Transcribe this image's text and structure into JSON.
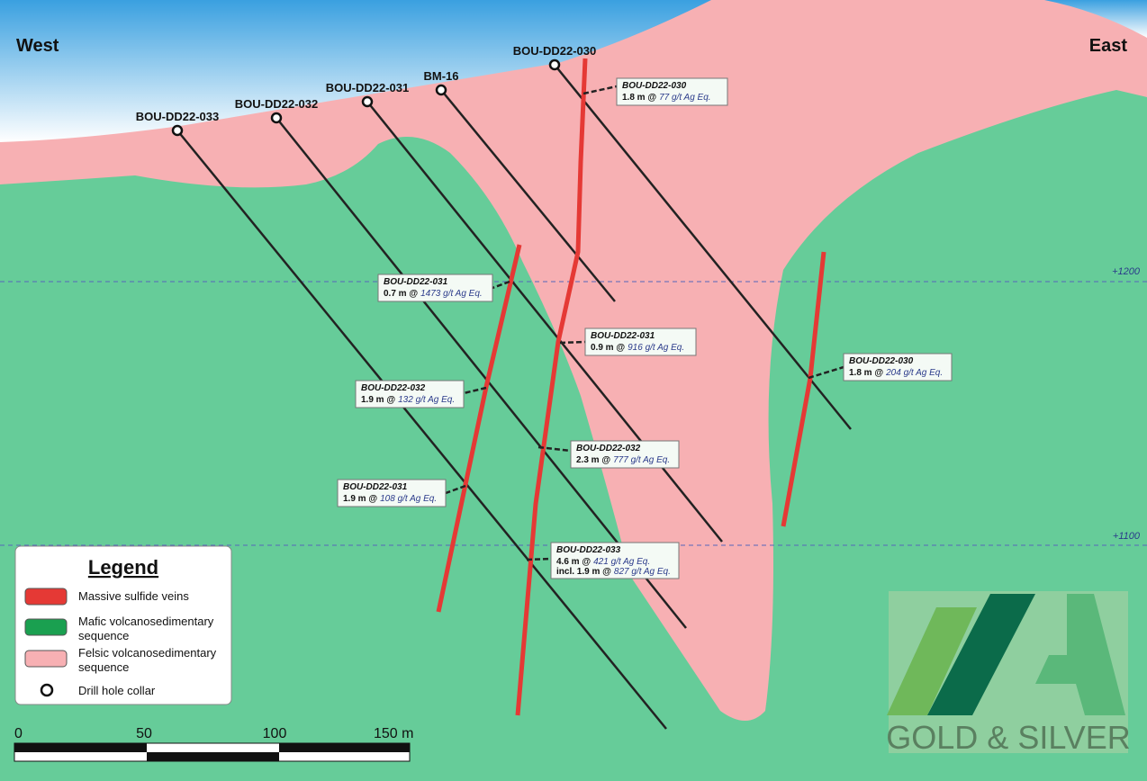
{
  "header": {
    "west": "West",
    "east": "East"
  },
  "holes": [
    {
      "label": "BOU-DD22-033"
    },
    {
      "label": "BOU-DD22-032"
    },
    {
      "label": "BOU-DD22-031"
    },
    {
      "label": "BM-16"
    },
    {
      "label": "BOU-DD22-030"
    }
  ],
  "elevations": [
    "+1200",
    "+1100"
  ],
  "intercepts": [
    {
      "hole": "BOU-DD22-030",
      "interval": "1.8 m @",
      "grade": "77 g/t Ag Eq."
    },
    {
      "hole": "BOU-DD22-031",
      "interval": "0.7 m @",
      "grade": "1473 g/t Ag Eq."
    },
    {
      "hole": "BOU-DD22-031",
      "interval": "0.9 m @",
      "grade": "916 g/t Ag Eq."
    },
    {
      "hole": "BOU-DD22-030",
      "interval": "1.8 m @",
      "grade": "204 g/t Ag Eq."
    },
    {
      "hole": "BOU-DD22-032",
      "interval": "1.9 m @",
      "grade": "132 g/t Ag Eq."
    },
    {
      "hole": "BOU-DD22-032",
      "interval": "2.3 m @",
      "grade": "777 g/t Ag Eq."
    },
    {
      "hole": "BOU-DD22-031",
      "interval": "1.9 m @",
      "grade": "108 g/t Ag Eq."
    },
    {
      "hole": "BOU-DD22-033",
      "interval": "4.6 m @",
      "grade": "421 g/t Ag Eq.",
      "extra": {
        "interval": "incl. 1.9 m @",
        "grade": "827 g/t Ag Eq."
      }
    }
  ],
  "legend": {
    "title": "Legend",
    "items": [
      {
        "lines": [
          "Massive sulfide veins"
        ]
      },
      {
        "lines": [
          "Mafic volcanosedimentary",
          "sequence"
        ]
      },
      {
        "lines": [
          "Felsic volcanosedimentary",
          "sequence"
        ]
      },
      {
        "lines": [
          "Drill hole collar"
        ]
      }
    ]
  },
  "scale_bar": {
    "labels": [
      "0",
      "50",
      "100",
      "150 m"
    ]
  },
  "logo": {
    "text": "GOLD & SILVER"
  }
}
